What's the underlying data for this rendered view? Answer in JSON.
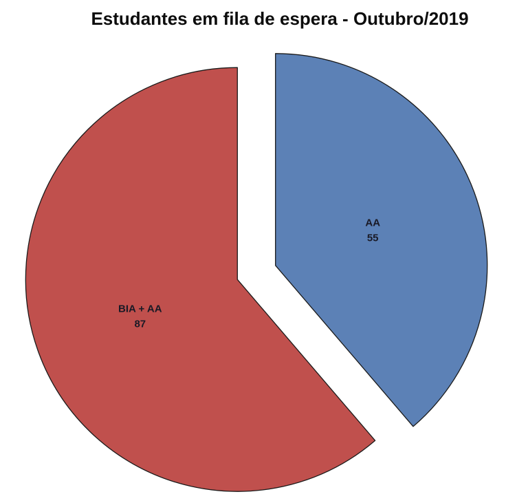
{
  "chart_data": {
    "type": "pie",
    "title": "Estudantes em fila de espera - Outubro/2019",
    "segments": [
      {
        "label": "AA",
        "value": 55,
        "color": "#5C81B6"
      },
      {
        "label": "BIA + AA",
        "value": 87,
        "color": "#C0504D"
      }
    ],
    "start_angle_deg": 0,
    "direction": "clockwise",
    "exploded": true,
    "legend": "none",
    "data_labels": "name-and-value",
    "colors": {
      "slice_outline": "#1a1a1a",
      "label_text": "#1a1a26",
      "title_text": "#0d0d0d",
      "background": "#ffffff"
    }
  }
}
